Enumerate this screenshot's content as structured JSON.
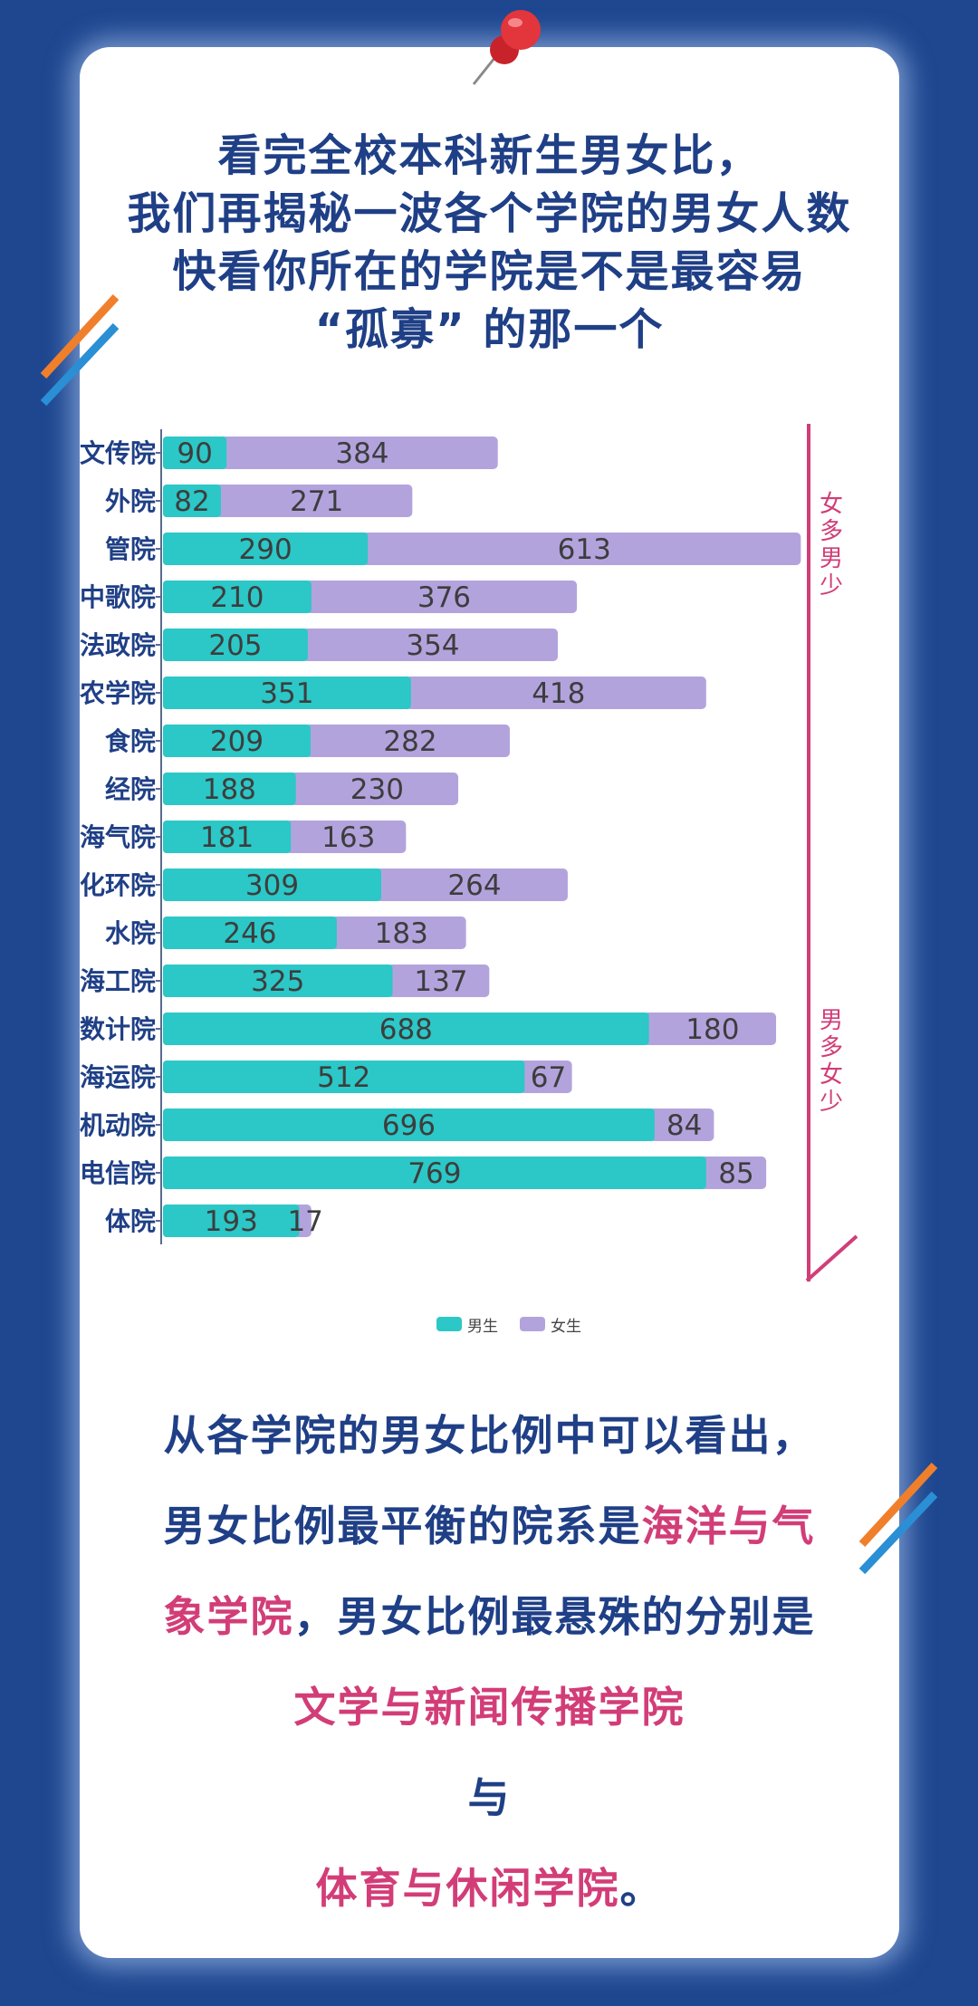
{
  "title": {
    "lines": [
      "看完全校本科新生男女比，",
      "我们再揭秘一波各个学院的男女人数",
      "快看你所在的学院是不是最容易",
      "“孤寡” 的那一个"
    ]
  },
  "colors": {
    "male": "#2cc7c7",
    "female": "#b3a3dd",
    "accent": "#d23d78",
    "text": "#1f3f86"
  },
  "chart_data": {
    "type": "bar",
    "orientation": "horizontal",
    "stacked": true,
    "categories": [
      "文传院",
      "外院",
      "管院",
      "中歌院",
      "法政院",
      "农学院",
      "食院",
      "经院",
      "海气院",
      "化环院",
      "水院",
      "海工院",
      "数计院",
      "海运院",
      "机动院",
      "电信院",
      "体院"
    ],
    "series": [
      {
        "name": "男生",
        "values": [
          90,
          82,
          290,
          210,
          205,
          351,
          209,
          188,
          181,
          309,
          246,
          325,
          688,
          512,
          696,
          769,
          193
        ]
      },
      {
        "name": "女生",
        "values": [
          384,
          271,
          613,
          376,
          354,
          418,
          282,
          230,
          163,
          264,
          183,
          137,
          180,
          67,
          84,
          85,
          17
        ]
      }
    ],
    "legend_position": "bottom",
    "grid": false,
    "annotations": [
      "女多男少",
      "男多女少"
    ]
  },
  "summary": {
    "line1": "从各学院的男女比例中可以看出，",
    "line2_a": "男女比例最平衡的院系是",
    "line2_b": "海洋与气",
    "line3_a": "象学院",
    "line3_b": "，男女比例最悬殊的分别是",
    "line4": "文学与新闻传播学院",
    "line5": "与",
    "line6_a": "体育与休闲学院",
    "line6_b": "。"
  }
}
